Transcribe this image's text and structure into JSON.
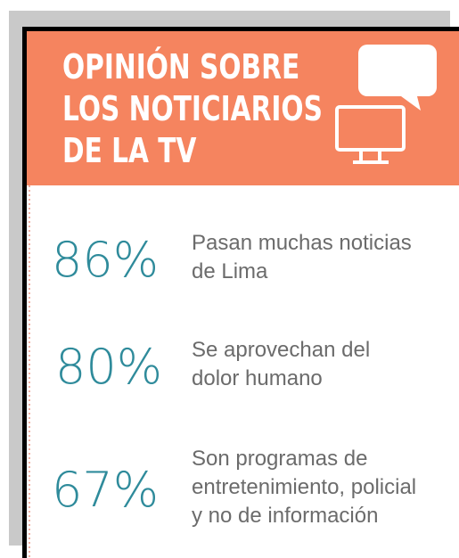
{
  "header": {
    "title": [
      "OPINIÓN SOBRE",
      "LOS NOTICIARIOS",
      "DE LA TV"
    ]
  },
  "items": [
    {
      "percent": "86%",
      "text": [
        "Pasan muchas noticias",
        "de Lima"
      ]
    },
    {
      "percent": "80%",
      "text": [
        "Se aprovechan del",
        "dolor humano"
      ]
    },
    {
      "percent": "67%",
      "text": [
        "Son programas de",
        "entretenimiento, policial",
        "y no de información"
      ]
    }
  ]
}
